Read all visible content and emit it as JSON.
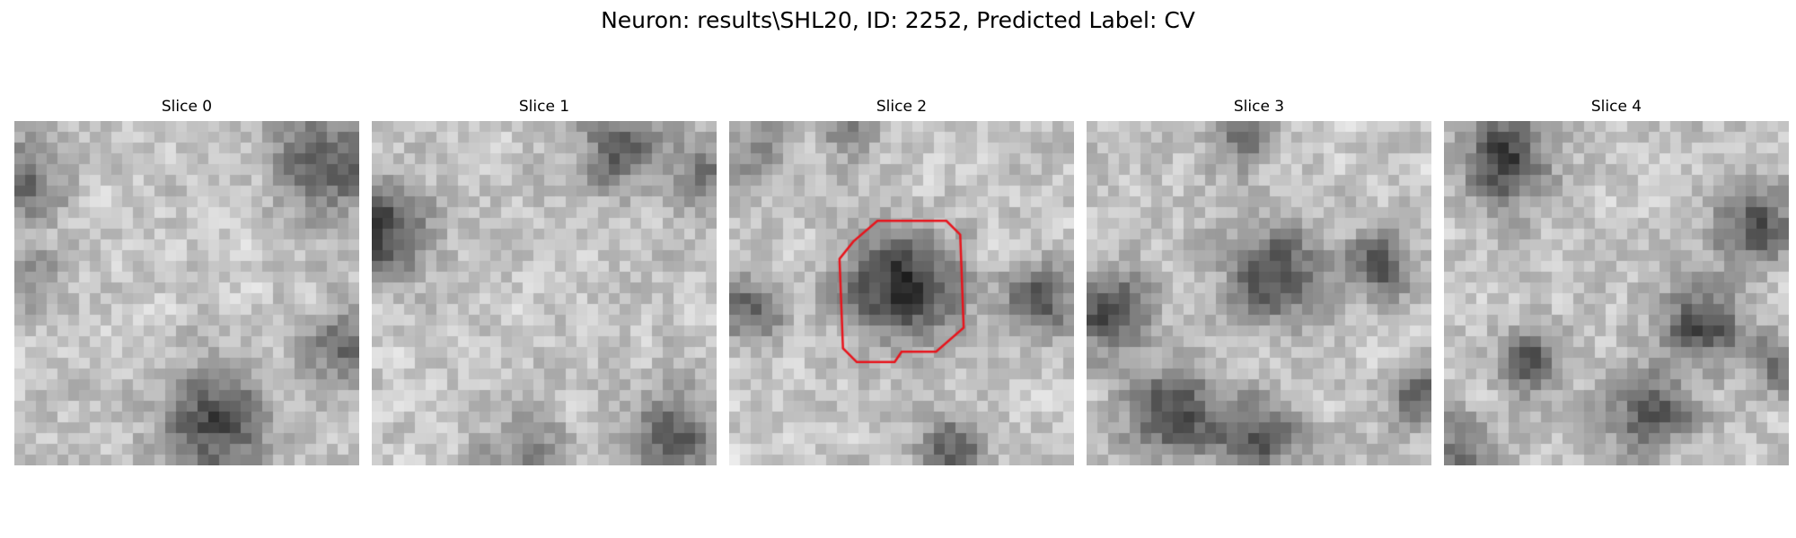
{
  "figure": {
    "title": "Neuron: results\\SHL20, ID: 2252, Predicted Label: CV"
  },
  "panels": [
    {
      "title": "Slice 0",
      "seed": 11,
      "dark_spots": [
        [
          0.92,
          0.12,
          0.16,
          0.5
        ],
        [
          0.58,
          0.88,
          0.16,
          0.6
        ],
        [
          0.96,
          0.65,
          0.12,
          0.45
        ],
        [
          0.02,
          0.18,
          0.12,
          0.5
        ],
        [
          0.05,
          0.48,
          0.1,
          0.3
        ]
      ]
    },
    {
      "title": "Slice 1",
      "seed": 23,
      "dark_spots": [
        [
          0.02,
          0.32,
          0.14,
          0.65
        ],
        [
          0.72,
          0.08,
          0.12,
          0.5
        ],
        [
          0.96,
          0.15,
          0.1,
          0.35
        ],
        [
          0.88,
          0.92,
          0.14,
          0.5
        ],
        [
          0.45,
          0.95,
          0.12,
          0.3
        ]
      ]
    },
    {
      "title": "Slice 2",
      "seed": 37,
      "dark_spots": [
        [
          0.5,
          0.48,
          0.16,
          0.75
        ],
        [
          0.9,
          0.52,
          0.1,
          0.55
        ],
        [
          0.06,
          0.55,
          0.1,
          0.5
        ],
        [
          0.65,
          0.95,
          0.1,
          0.5
        ],
        [
          0.1,
          0.1,
          0.09,
          0.35
        ],
        [
          0.35,
          0.03,
          0.08,
          0.3
        ]
      ],
      "outline": [
        [
          0.43,
          0.29
        ],
        [
          0.63,
          0.29
        ],
        [
          0.67,
          0.33
        ],
        [
          0.68,
          0.6
        ],
        [
          0.6,
          0.67
        ],
        [
          0.5,
          0.67
        ],
        [
          0.48,
          0.7
        ],
        [
          0.37,
          0.7
        ],
        [
          0.33,
          0.66
        ],
        [
          0.32,
          0.4
        ],
        [
          0.36,
          0.35
        ]
      ],
      "outline_color": "#e8141c"
    },
    {
      "title": "Slice 3",
      "seed": 51,
      "dark_spots": [
        [
          0.06,
          0.55,
          0.12,
          0.6
        ],
        [
          0.25,
          0.85,
          0.14,
          0.6
        ],
        [
          0.5,
          0.92,
          0.12,
          0.55
        ],
        [
          0.55,
          0.45,
          0.14,
          0.6
        ],
        [
          0.85,
          0.42,
          0.1,
          0.55
        ],
        [
          0.97,
          0.8,
          0.1,
          0.5
        ],
        [
          0.45,
          0.05,
          0.1,
          0.4
        ]
      ]
    },
    {
      "title": "Slice 4",
      "seed": 67,
      "dark_spots": [
        [
          0.18,
          0.12,
          0.12,
          0.7
        ],
        [
          0.9,
          0.3,
          0.12,
          0.55
        ],
        [
          0.75,
          0.6,
          0.12,
          0.6
        ],
        [
          0.6,
          0.85,
          0.12,
          0.55
        ],
        [
          0.25,
          0.7,
          0.1,
          0.55
        ],
        [
          0.97,
          0.7,
          0.08,
          0.5
        ],
        [
          0.05,
          0.95,
          0.1,
          0.4
        ]
      ]
    }
  ]
}
